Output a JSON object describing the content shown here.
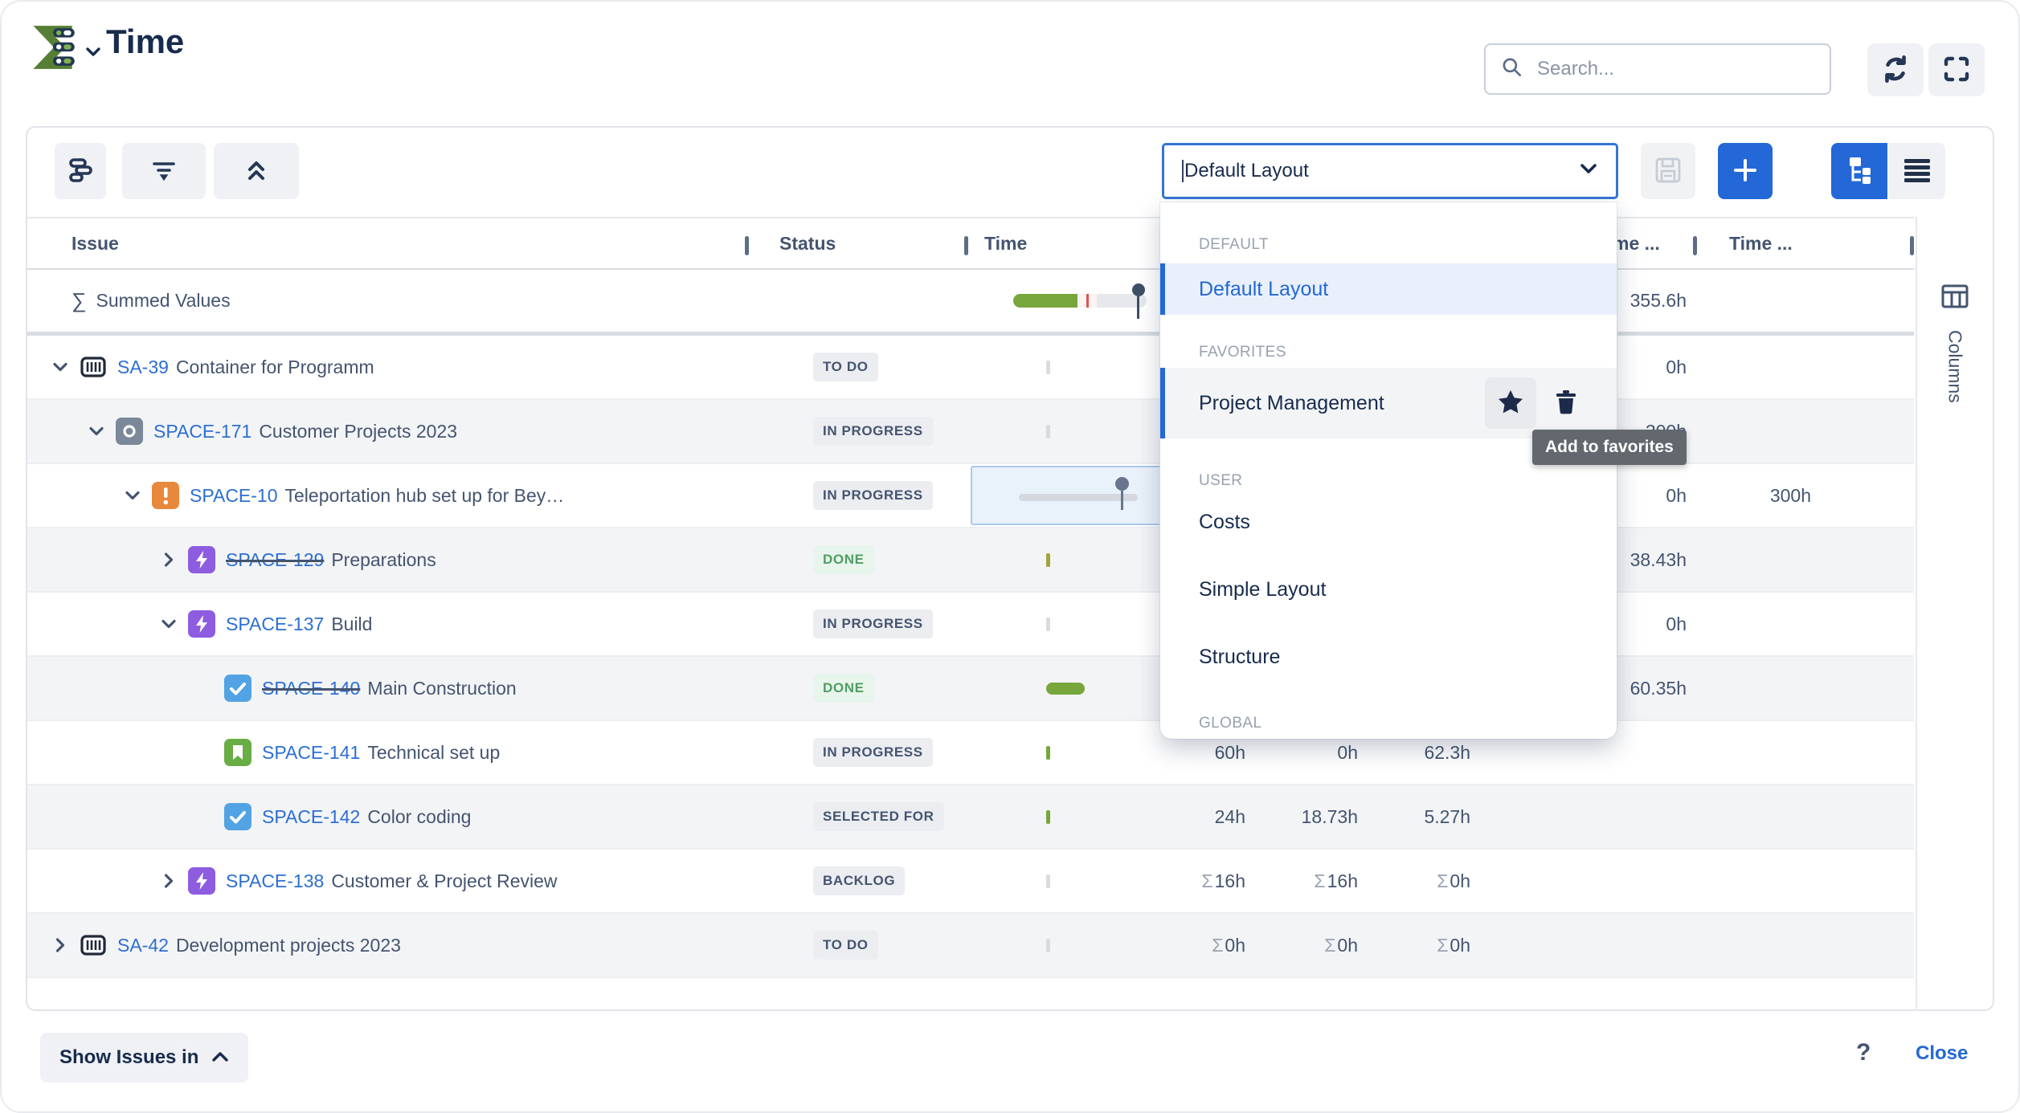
{
  "header": {
    "title": "Time",
    "search_placeholder": "Search..."
  },
  "toolbar": {
    "layout_select_value": "Default Layout"
  },
  "layout_dropdown": {
    "sections": [
      {
        "label": "DEFAULT",
        "items": [
          {
            "label": "Default Layout",
            "state": "selected"
          }
        ]
      },
      {
        "label": "FAVORITES",
        "items": [
          {
            "label": "Project Management",
            "state": "hovered"
          }
        ]
      },
      {
        "label": "USER",
        "items": [
          {
            "label": "Costs"
          },
          {
            "label": "Simple Layout"
          },
          {
            "label": "Structure"
          }
        ]
      },
      {
        "label": "GLOBAL",
        "items": []
      }
    ]
  },
  "tooltip": {
    "text": "Add to favorites"
  },
  "table": {
    "columns": [
      {
        "label": "Issue"
      },
      {
        "label": "Status"
      },
      {
        "label": "Time"
      },
      {
        "label": ""
      },
      {
        "label": ""
      },
      {
        "label": ""
      },
      {
        "label": "Time ..."
      },
      {
        "label": "Time ..."
      },
      {
        "label": ""
      }
    ],
    "rows": [
      {
        "id": "summed",
        "sigma": "∑",
        "label": "Summed Values",
        "stripe": false,
        "time_cell": {
          "kind": "bar",
          "green_frac": 0.48,
          "marker_frac": 0.56,
          "pin_frac": 0.93
        },
        "values": {
          "d": "355.6h"
        }
      },
      {
        "key": "SA-39",
        "summary": "Container for Programm",
        "icon": "program",
        "indent": 0,
        "expander": "expanded",
        "status": "TO DO",
        "status_style": "gray",
        "stripe": false,
        "time_cell": {
          "kind": "tick",
          "color": "#d8dbdf"
        },
        "values": {
          "d": "0h"
        }
      },
      {
        "key": "SPACE-171",
        "summary": "Customer Projects 2023",
        "icon": "subproject",
        "indent": 1,
        "expander": "expanded",
        "status": "IN PROGRESS",
        "status_style": "gray",
        "stripe": true,
        "time_cell": {
          "kind": "tick",
          "color": "#d8dbdf"
        },
        "values": {
          "d": "300h"
        }
      },
      {
        "key": "SPACE-10",
        "summary": "Teleportation hub set up for Bey…",
        "icon": "alert",
        "indent": 2,
        "expander": "expanded",
        "status": "IN PROGRESS",
        "status_style": "gray",
        "stripe": false,
        "time_cell": {
          "kind": "slider",
          "value_frac": 0.85
        },
        "values": {
          "d": "0h",
          "e": "300h"
        }
      },
      {
        "key": "SPACE-129",
        "summary": "Preparations",
        "icon": "epic",
        "indent": 3,
        "strike": true,
        "expander": "collapsed",
        "status": "DONE",
        "status_style": "green",
        "stripe": true,
        "time_cell": {
          "kind": "tick",
          "color": "#a2a43b"
        },
        "values": {
          "d": "38.43h"
        }
      },
      {
        "key": "SPACE-137",
        "summary": "Build",
        "icon": "epic",
        "indent": 3,
        "expander": "expanded",
        "status": "IN PROGRESS",
        "status_style": "gray",
        "stripe": false,
        "time_cell": {
          "kind": "tick",
          "color": "#d8dbdf"
        },
        "values": {
          "d": "0h"
        }
      },
      {
        "key": "SPACE-140",
        "summary": "Main Construction",
        "icon": "task",
        "indent": 4,
        "strike": true,
        "expander": null,
        "status": "DONE",
        "status_style": "green",
        "stripe": true,
        "time_cell": {
          "kind": "pill"
        },
        "values": {
          "d": "60.35h"
        }
      },
      {
        "key": "SPACE-141",
        "summary": "Technical set up",
        "icon": "story",
        "indent": 4,
        "expander": null,
        "status": "IN PROGRESS",
        "status_style": "gray",
        "stripe": false,
        "time_cell": {
          "kind": "tick",
          "color": "#77a63c"
        },
        "values": {
          "a": "60h",
          "b": "0h",
          "c": "62.3h"
        }
      },
      {
        "key": "SPACE-142",
        "summary": "Color coding",
        "icon": "task",
        "indent": 4,
        "expander": null,
        "status": "SELECTED FOR",
        "status_style": "gray",
        "stripe": true,
        "time_cell": {
          "kind": "tick",
          "color": "#77a63c"
        },
        "values": {
          "a": "24h",
          "b": "18.73h",
          "c": "5.27h"
        }
      },
      {
        "key": "SPACE-138",
        "summary": "Customer & Project Review",
        "icon": "epic",
        "indent": 3,
        "expander": "collapsed",
        "status": "BACKLOG",
        "status_style": "gray",
        "stripe": false,
        "time_cell": {
          "kind": "tick",
          "color": "#d8dbdf"
        },
        "values": {
          "a": "Σ16h",
          "b": "Σ16h",
          "c": "Σ0h"
        }
      },
      {
        "key": "SA-42",
        "summary": "Development projects 2023",
        "icon": "program",
        "indent": 0,
        "expander": "collapsed",
        "status": "TO DO",
        "status_style": "gray",
        "stripe": true,
        "time_cell": {
          "kind": "tick",
          "color": "#d8dbdf"
        },
        "values": {
          "a": "Σ0h",
          "b": "Σ0h",
          "c": "Σ0h"
        }
      }
    ]
  },
  "rail": {
    "label": "Columns"
  },
  "footer": {
    "show_issues_in": "Show Issues in",
    "help": "?",
    "close": "Close"
  },
  "colors": {
    "accent_blue": "#2368d6",
    "link_blue": "#2c6fd2",
    "navy": "#172b4d",
    "progress_green": "#77a63c",
    "marker_red": "#e05252",
    "done_green": "#4f9e63"
  }
}
